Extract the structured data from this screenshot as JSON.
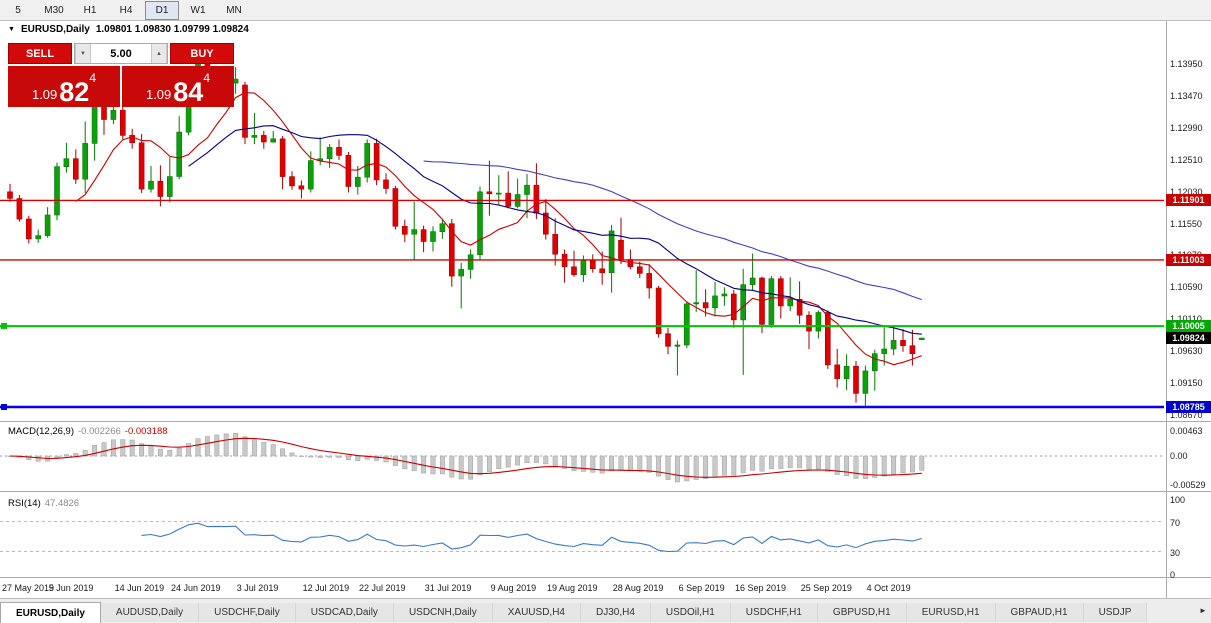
{
  "icons": {
    "collapse": "▼",
    "spin_down": "▼",
    "spin_up": "▲",
    "tab_scroll_right": "►"
  },
  "toolbar": {
    "timeframes": [
      {
        "label": "5",
        "active": false
      },
      {
        "label": "M30",
        "active": false
      },
      {
        "label": "H1",
        "active": false
      },
      {
        "label": "H4",
        "active": false
      },
      {
        "label": "D1",
        "active": true
      },
      {
        "label": "W1",
        "active": false
      },
      {
        "label": "MN",
        "active": false
      }
    ]
  },
  "one_click": {
    "sell_label": "SELL",
    "buy_label": "BUY",
    "volume": "5.00",
    "sell_price_head": "1.09",
    "sell_price_big": "82",
    "sell_price_sup": "4",
    "buy_price_head": "1.09",
    "buy_price_big": "84",
    "buy_price_sup": "4"
  },
  "chart_data": {
    "type": "candlestick",
    "symbol": "EURUSD",
    "timeframe": "Daily",
    "title": "EURUSD,Daily",
    "ohlc_text": "1.09801 1.09830 1.09799 1.09824",
    "ylim": [
      1.0868,
      1.145
    ],
    "price_axis_ticks": [
      "1.13950",
      "1.13470",
      "1.12990",
      "1.12510",
      "1.12030",
      "1.11550",
      "1.11070",
      "1.10590",
      "1.10110",
      "1.09630",
      "1.09150",
      "1.08670"
    ],
    "x_labels": [
      {
        "text": "27 May 2019",
        "i": 0
      },
      {
        "text": "5 Jun 2019",
        "i": 7
      },
      {
        "text": "14 Jun 2019",
        "i": 14
      },
      {
        "text": "24 Jun 2019",
        "i": 20
      },
      {
        "text": "3 Jul 2019",
        "i": 27
      },
      {
        "text": "12 Jul 2019",
        "i": 34
      },
      {
        "text": "22 Jul 2019",
        "i": 40
      },
      {
        "text": "31 Jul 2019",
        "i": 47
      },
      {
        "text": "9 Aug 2019",
        "i": 54
      },
      {
        "text": "19 Aug 2019",
        "i": 60
      },
      {
        "text": "28 Aug 2019",
        "i": 67
      },
      {
        "text": "6 Sep 2019",
        "i": 74
      },
      {
        "text": "16 Sep 2019",
        "i": 80
      },
      {
        "text": "25 Sep 2019",
        "i": 87
      },
      {
        "text": "4 Oct 2019",
        "i": 94
      }
    ],
    "candles": [
      [
        1.1203,
        1.1215,
        1.1188,
        1.1193
      ],
      [
        1.1193,
        1.1198,
        1.1158,
        1.1162
      ],
      [
        1.1162,
        1.1167,
        1.1125,
        1.1132
      ],
      [
        1.1132,
        1.1146,
        1.1126,
        1.1137
      ],
      [
        1.1137,
        1.118,
        1.1134,
        1.1168
      ],
      [
        1.1168,
        1.1247,
        1.116,
        1.1241
      ],
      [
        1.1241,
        1.1277,
        1.1232,
        1.1253
      ],
      [
        1.1253,
        1.1267,
        1.1215,
        1.1222
      ],
      [
        1.1222,
        1.1309,
        1.1201,
        1.1276
      ],
      [
        1.1276,
        1.1348,
        1.125,
        1.1334
      ],
      [
        1.1334,
        1.1336,
        1.1289,
        1.1312
      ],
      [
        1.1312,
        1.1338,
        1.1305,
        1.1326
      ],
      [
        1.1326,
        1.1344,
        1.1282,
        1.1288
      ],
      [
        1.1288,
        1.1298,
        1.1268,
        1.1277
      ],
      [
        1.1277,
        1.129,
        1.1201,
        1.1207
      ],
      [
        1.1207,
        1.1242,
        1.1202,
        1.1219
      ],
      [
        1.1219,
        1.1243,
        1.1181,
        1.1196
      ],
      [
        1.1196,
        1.1255,
        1.1187,
        1.1226
      ],
      [
        1.1226,
        1.1317,
        1.1222,
        1.1293
      ],
      [
        1.1293,
        1.1378,
        1.1288,
        1.1368
      ],
      [
        1.1368,
        1.1412,
        1.1362,
        1.14
      ],
      [
        1.14,
        1.141,
        1.1344,
        1.1365
      ],
      [
        1.1365,
        1.1391,
        1.1348,
        1.1369
      ],
      [
        1.1369,
        1.1388,
        1.1355,
        1.1367
      ],
      [
        1.1367,
        1.1391,
        1.1351,
        1.1373
      ],
      [
        1.1364,
        1.1369,
        1.1275,
        1.1285
      ],
      [
        1.1285,
        1.1322,
        1.1275,
        1.1288
      ],
      [
        1.1288,
        1.1295,
        1.1268,
        1.1278
      ],
      [
        1.1278,
        1.1295,
        1.1277,
        1.1283
      ],
      [
        1.1283,
        1.1287,
        1.1207,
        1.1226
      ],
      [
        1.1226,
        1.1234,
        1.1206,
        1.1212
      ],
      [
        1.1212,
        1.122,
        1.1193,
        1.1207
      ],
      [
        1.1207,
        1.1264,
        1.1202,
        1.125
      ],
      [
        1.125,
        1.1285,
        1.1243,
        1.1253
      ],
      [
        1.1253,
        1.1275,
        1.1239,
        1.127
      ],
      [
        1.127,
        1.1282,
        1.1251,
        1.1258
      ],
      [
        1.1258,
        1.1263,
        1.1202,
        1.1211
      ],
      [
        1.1211,
        1.1242,
        1.1199,
        1.1225
      ],
      [
        1.1225,
        1.1282,
        1.1217,
        1.1276
      ],
      [
        1.1276,
        1.1283,
        1.1213,
        1.1221
      ],
      [
        1.1221,
        1.1231,
        1.12,
        1.1208
      ],
      [
        1.1208,
        1.1212,
        1.1146,
        1.1151
      ],
      [
        1.1151,
        1.1161,
        1.1127,
        1.1139
      ],
      [
        1.1139,
        1.1188,
        1.1101,
        1.1146
      ],
      [
        1.1146,
        1.1152,
        1.1112,
        1.1128
      ],
      [
        1.1128,
        1.1151,
        1.1113,
        1.1143
      ],
      [
        1.1143,
        1.1162,
        1.1132,
        1.1155
      ],
      [
        1.1155,
        1.1162,
        1.106,
        1.1076
      ],
      [
        1.1076,
        1.1096,
        1.1027,
        1.1086
      ],
      [
        1.1086,
        1.1116,
        1.1072,
        1.1108
      ],
      [
        1.1108,
        1.1211,
        1.1101,
        1.1203
      ],
      [
        1.1203,
        1.125,
        1.1167,
        1.12
      ],
      [
        1.12,
        1.1228,
        1.1184,
        1.1201
      ],
      [
        1.1201,
        1.1234,
        1.1178,
        1.1181
      ],
      [
        1.1181,
        1.1223,
        1.1178,
        1.1199
      ],
      [
        1.1199,
        1.123,
        1.1163,
        1.1213
      ],
      [
        1.1213,
        1.1246,
        1.1162,
        1.1171
      ],
      [
        1.1171,
        1.1192,
        1.1131,
        1.1139
      ],
      [
        1.1139,
        1.1163,
        1.1092,
        1.1109
      ],
      [
        1.1109,
        1.1116,
        1.1066,
        1.109
      ],
      [
        1.109,
        1.1114,
        1.1075,
        1.1078
      ],
      [
        1.1078,
        1.1107,
        1.1067,
        1.11
      ],
      [
        1.11,
        1.1109,
        1.1081,
        1.1087
      ],
      [
        1.1087,
        1.1113,
        1.1063,
        1.1081
      ],
      [
        1.1081,
        1.1153,
        1.1051,
        1.1144
      ],
      [
        1.113,
        1.1164,
        1.1094,
        1.1101
      ],
      [
        1.1101,
        1.1116,
        1.1086,
        1.109
      ],
      [
        1.109,
        1.1098,
        1.1073,
        1.108
      ],
      [
        1.108,
        1.1094,
        1.1042,
        1.1058
      ],
      [
        1.1058,
        1.1061,
        1.0983,
        1.0989
      ],
      [
        1.0989,
        1.0998,
        1.0958,
        1.097
      ],
      [
        1.097,
        1.0979,
        1.0926,
        1.0972
      ],
      [
        1.0972,
        1.1038,
        1.0967,
        1.1034
      ],
      [
        1.1034,
        1.1085,
        1.1022,
        1.1036
      ],
      [
        1.1036,
        1.1056,
        1.1015,
        1.1028
      ],
      [
        1.1028,
        1.1067,
        1.1015,
        1.1046
      ],
      [
        1.1046,
        1.1059,
        1.1031,
        1.1049
      ],
      [
        1.1049,
        1.1055,
        1.0998,
        1.101
      ],
      [
        1.101,
        1.1087,
        1.0927,
        1.1063
      ],
      [
        1.1063,
        1.111,
        1.1055,
        1.1073
      ],
      [
        1.1073,
        1.1075,
        1.099,
        1.1003
      ],
      [
        1.1003,
        1.1076,
        1.0998,
        1.1072
      ],
      [
        1.1072,
        1.1076,
        1.1012,
        1.1031
      ],
      [
        1.1031,
        1.1074,
        1.1023,
        1.1041
      ],
      [
        1.1041,
        1.1068,
        1.1004,
        1.1017
      ],
      [
        1.1017,
        1.1023,
        1.0966,
        1.0993
      ],
      [
        1.0993,
        1.1024,
        1.0982,
        1.1021
      ],
      [
        1.1021,
        1.1024,
        1.0936,
        1.0942
      ],
      [
        1.0942,
        1.0966,
        1.0908,
        1.0921
      ],
      [
        1.0921,
        1.0958,
        1.0904,
        1.094
      ],
      [
        1.094,
        1.0948,
        1.0885,
        1.0899
      ],
      [
        1.0899,
        1.0941,
        1.0879,
        1.0933
      ],
      [
        1.0933,
        1.0965,
        1.0903,
        1.0959
      ],
      [
        1.0959,
        1.0999,
        1.0941,
        1.0966
      ],
      [
        1.0966,
        1.0999,
        1.0957,
        1.0979
      ],
      [
        1.0979,
        1.0996,
        1.0962,
        1.0971
      ],
      [
        1.0971,
        1.0995,
        1.0941,
        1.0959
      ],
      [
        1.09801,
        1.0983,
        1.09799,
        1.09824
      ]
    ],
    "moving_averages": [
      {
        "period": 8,
        "color": "#C80000"
      },
      {
        "period": 20,
        "color": "#000080"
      },
      {
        "period": 45,
        "color": "#4040C0"
      }
    ],
    "hlines": [
      {
        "price": 1.11901,
        "label": "1.11901",
        "color": "#D60000",
        "chip_bg": "#C80000",
        "chip_fg": "#FFFFFF",
        "width": 1.4,
        "handle": false
      },
      {
        "price": 1.11003,
        "label": "1.11003",
        "color": "#D60000",
        "chip_bg": "#C80000",
        "chip_fg": "#FFFFFF",
        "width": 1.4,
        "handle": false
      },
      {
        "price": 1.10005,
        "label": "1.10005",
        "color": "#00C400",
        "chip_bg": "#00A800",
        "chip_fg": "#FFFFFF",
        "width": 2,
        "handle": true
      },
      {
        "price": 1.08785,
        "label": "1.08785",
        "color": "#0000E0",
        "chip_bg": "#0000C8",
        "chip_fg": "#FFFFFF",
        "width": 2.6,
        "handle": true
      }
    ],
    "current_price": {
      "value": 1.09824,
      "label": "1.09824",
      "chip_bg": "#000000",
      "chip_fg": "#FFFFFF"
    },
    "indicators": {
      "macd": {
        "name": "MACD(12,26,9)",
        "params": [
          12,
          26,
          9
        ],
        "value_main": "-0.002266",
        "value_signal": "-0.003188",
        "axis": [
          "0.00463",
          "0.00",
          "-0.00529"
        ],
        "histogram_color": "#C9C9C9",
        "signal_color": "#C80000"
      },
      "rsi": {
        "name": "RSI(14)",
        "period": 14,
        "value": "47.4826",
        "levels": [
          70,
          30
        ],
        "axis": [
          "100",
          "70",
          "30",
          "0"
        ],
        "color": "#3C78C8"
      }
    }
  },
  "tabbar": {
    "tabs": [
      {
        "label": "EURUSD,Daily",
        "active": true
      },
      {
        "label": "AUDUSD,Daily",
        "active": false
      },
      {
        "label": "USDCHF,Daily",
        "active": false
      },
      {
        "label": "USDCAD,Daily",
        "active": false
      },
      {
        "label": "USDCNH,Daily",
        "active": false
      },
      {
        "label": "XAUUSD,H4",
        "active": false
      },
      {
        "label": "DJ30,H4",
        "active": false
      },
      {
        "label": "USDOil,H1",
        "active": false
      },
      {
        "label": "USDCHF,H1",
        "active": false
      },
      {
        "label": "GBPUSD,H1",
        "active": false
      },
      {
        "label": "EURUSD,H1",
        "active": false
      },
      {
        "label": "GBPAUD,H1",
        "active": false
      },
      {
        "label": "USDJP",
        "active": false
      }
    ]
  }
}
